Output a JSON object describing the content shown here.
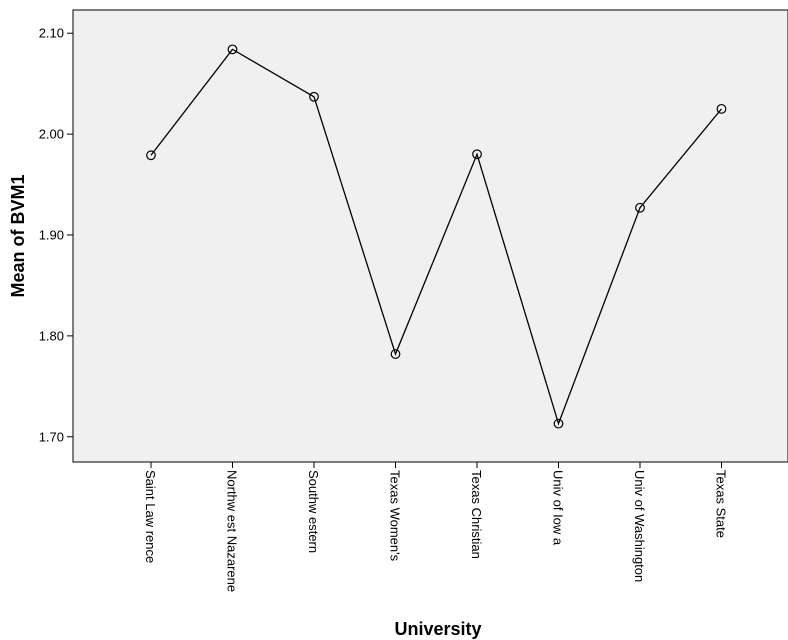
{
  "chart_data": {
    "type": "line",
    "title": "",
    "xlabel": "University",
    "ylabel": "Mean of BVM1",
    "categories": [
      "Saint Law rence",
      "Northw est Nazarene",
      "Southw estern",
      "Texas Women's",
      "Texas Christian",
      "Univ of Iow a",
      "Univ of Washington",
      "Texas State"
    ],
    "values": [
      1.979,
      2.084,
      2.037,
      1.782,
      1.98,
      1.713,
      1.927,
      2.025
    ],
    "ylim": [
      1.675,
      2.123
    ],
    "yticks": [
      1.7,
      1.8,
      1.9,
      2.0,
      2.1
    ],
    "ytick_labels": [
      "1.70",
      "1.80",
      "1.90",
      "2.00",
      "2.10"
    ],
    "grid": false,
    "markers": "open-circle",
    "colors": {
      "plot_background": "#f0f0f0",
      "line": "#000000",
      "frame": "#000000"
    }
  }
}
